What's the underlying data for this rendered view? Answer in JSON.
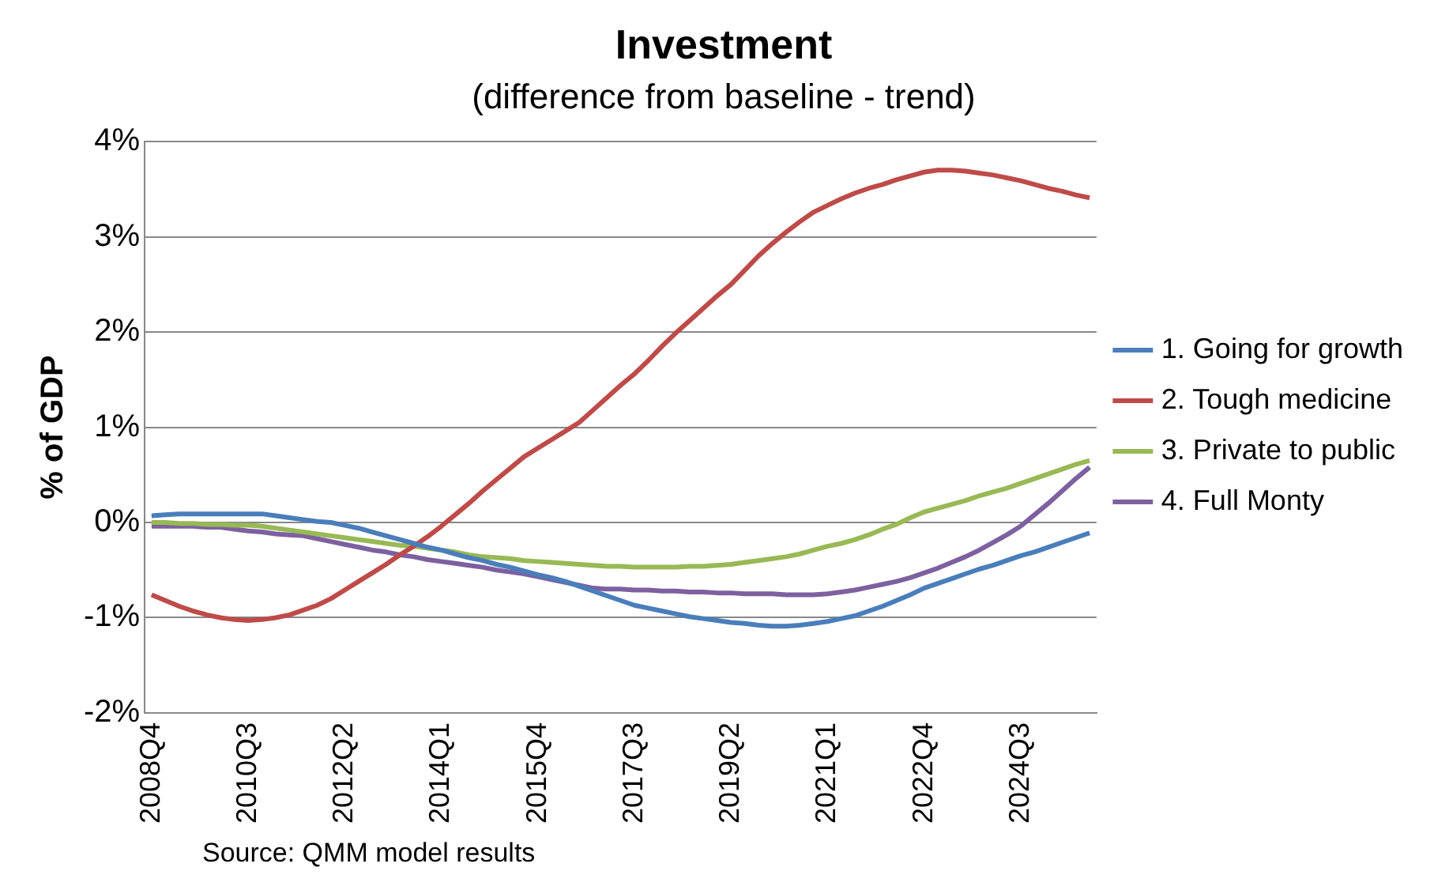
{
  "chart_data": {
    "type": "line",
    "title": "Investment",
    "subtitle": "(difference from baseline - trend)",
    "ylabel": "% of GDP",
    "categories": [
      "2008Q4",
      null,
      null,
      null,
      null,
      null,
      null,
      "2010Q3",
      null,
      null,
      null,
      null,
      null,
      null,
      "2012Q2",
      null,
      null,
      null,
      null,
      null,
      null,
      "2014Q1",
      null,
      null,
      null,
      null,
      null,
      null,
      "2015Q4",
      null,
      null,
      null,
      null,
      null,
      null,
      "2017Q3",
      null,
      null,
      null,
      null,
      null,
      null,
      "2019Q2",
      null,
      null,
      null,
      null,
      null,
      null,
      "2021Q1",
      null,
      null,
      null,
      null,
      null,
      null,
      "2022Q4",
      null,
      null,
      null,
      null,
      null,
      null,
      "2024Q3",
      null,
      null,
      null,
      null,
      null
    ],
    "series": [
      {
        "name": "1. Going for growth",
        "color": "#4a7ebb",
        "values": [
          0.07,
          0.08,
          0.09,
          0.09,
          0.09,
          0.09,
          0.09,
          0.09,
          0.09,
          0.07,
          0.05,
          0.03,
          0.01,
          0.0,
          -0.03,
          -0.06,
          -0.1,
          -0.14,
          -0.18,
          -0.22,
          -0.26,
          -0.29,
          -0.33,
          -0.37,
          -0.4,
          -0.44,
          -0.47,
          -0.51,
          -0.55,
          -0.58,
          -0.62,
          -0.67,
          -0.72,
          -0.77,
          -0.82,
          -0.87,
          -0.9,
          -0.93,
          -0.96,
          -0.99,
          -1.01,
          -1.03,
          -1.05,
          -1.06,
          -1.08,
          -1.09,
          -1.09,
          -1.08,
          -1.06,
          -1.04,
          -1.01,
          -0.98,
          -0.93,
          -0.88,
          -0.82,
          -0.76,
          -0.69,
          -0.64,
          -0.59,
          -0.54,
          -0.49,
          -0.45,
          -0.4,
          -0.35,
          -0.31,
          -0.26,
          -0.21,
          -0.16,
          -0.11
        ]
      },
      {
        "name": "2. Tough medicine",
        "color": "#be4b48",
        "values": [
          -0.76,
          -0.82,
          -0.88,
          -0.93,
          -0.97,
          -1.0,
          -1.02,
          -1.03,
          -1.02,
          -1.0,
          -0.97,
          -0.92,
          -0.87,
          -0.8,
          -0.71,
          -0.62,
          -0.53,
          -0.44,
          -0.34,
          -0.25,
          -0.15,
          -0.04,
          0.08,
          0.2,
          0.33,
          0.45,
          0.57,
          0.69,
          0.78,
          0.87,
          0.96,
          1.05,
          1.18,
          1.31,
          1.44,
          1.56,
          1.7,
          1.85,
          1.99,
          2.12,
          2.25,
          2.38,
          2.5,
          2.65,
          2.8,
          2.93,
          3.05,
          3.16,
          3.26,
          3.33,
          3.4,
          3.46,
          3.51,
          3.55,
          3.6,
          3.64,
          3.68,
          3.7,
          3.7,
          3.69,
          3.67,
          3.65,
          3.62,
          3.59,
          3.55,
          3.51,
          3.48,
          3.44,
          3.41
        ]
      },
      {
        "name": "3. Private to public",
        "color": "#98b954",
        "values": [
          0.0,
          0.0,
          -0.01,
          -0.01,
          -0.02,
          -0.02,
          -0.03,
          -0.03,
          -0.04,
          -0.06,
          -0.08,
          -0.1,
          -0.12,
          -0.14,
          -0.16,
          -0.18,
          -0.2,
          -0.22,
          -0.24,
          -0.25,
          -0.27,
          -0.29,
          -0.31,
          -0.34,
          -0.36,
          -0.37,
          -0.38,
          -0.4,
          -0.41,
          -0.42,
          -0.43,
          -0.44,
          -0.45,
          -0.46,
          -0.46,
          -0.47,
          -0.47,
          -0.47,
          -0.47,
          -0.46,
          -0.46,
          -0.45,
          -0.44,
          -0.42,
          -0.4,
          -0.38,
          -0.36,
          -0.33,
          -0.29,
          -0.25,
          -0.22,
          -0.18,
          -0.13,
          -0.07,
          -0.02,
          0.05,
          0.11,
          0.15,
          0.19,
          0.23,
          0.28,
          0.32,
          0.36,
          0.41,
          0.46,
          0.51,
          0.56,
          0.61,
          0.65
        ]
      },
      {
        "name": "4. Full Monty",
        "color": "#7d60a0",
        "values": [
          -0.04,
          -0.04,
          -0.04,
          -0.04,
          -0.05,
          -0.05,
          -0.07,
          -0.09,
          -0.1,
          -0.12,
          -0.13,
          -0.14,
          -0.17,
          -0.2,
          -0.23,
          -0.26,
          -0.29,
          -0.31,
          -0.34,
          -0.36,
          -0.39,
          -0.41,
          -0.43,
          -0.45,
          -0.47,
          -0.5,
          -0.52,
          -0.54,
          -0.57,
          -0.6,
          -0.63,
          -0.66,
          -0.69,
          -0.7,
          -0.7,
          -0.71,
          -0.71,
          -0.72,
          -0.72,
          -0.73,
          -0.73,
          -0.74,
          -0.74,
          -0.75,
          -0.75,
          -0.75,
          -0.76,
          -0.76,
          -0.76,
          -0.75,
          -0.73,
          -0.71,
          -0.68,
          -0.65,
          -0.62,
          -0.58,
          -0.53,
          -0.48,
          -0.42,
          -0.36,
          -0.29,
          -0.21,
          -0.13,
          -0.04,
          0.08,
          0.2,
          0.33,
          0.46,
          0.58
        ]
      }
    ],
    "ylim": [
      -2,
      4
    ],
    "yticks": [
      {
        "value": -2,
        "label": "-2%"
      },
      {
        "value": -1,
        "label": "-1%"
      },
      {
        "value": 0,
        "label": "0%"
      },
      {
        "value": 1,
        "label": "1%"
      },
      {
        "value": 2,
        "label": "2%"
      },
      {
        "value": 3,
        "label": "3%"
      },
      {
        "value": 4,
        "label": "4%"
      }
    ],
    "grid": "y",
    "legend": "right",
    "marker": "none",
    "line_style": "solid",
    "annotations": [
      "Source: QMM model results"
    ]
  }
}
